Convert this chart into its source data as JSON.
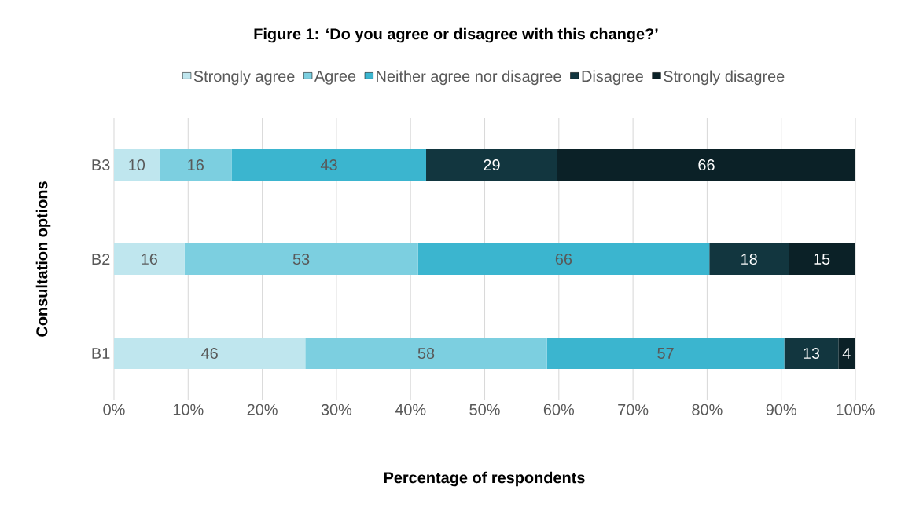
{
  "chart_data": {
    "type": "bar",
    "orientation": "horizontal",
    "stacked": true,
    "title": "Figure 1: ‘Do you agree or disagree with this change?’",
    "xlabel": "Percentage of respondents",
    "ylabel": "Consultation options",
    "categories": [
      "B3",
      "B2",
      "B1"
    ],
    "series": [
      {
        "name": "Strongly agree",
        "color": "#bfe6ee",
        "values": [
          6.1,
          9.5,
          25.8
        ]
      },
      {
        "name": "Agree",
        "color": "#7ccfe0",
        "values": [
          9.8,
          31.5,
          32.6
        ]
      },
      {
        "name": "Neither agree nor disagree",
        "color": "#3bb5cf",
        "values": [
          26.2,
          39.3,
          32.0
        ]
      },
      {
        "name": "Disagree",
        "color": "#12363f",
        "values": [
          17.7,
          10.7,
          7.3
        ]
      },
      {
        "name": "Strongly disagree",
        "color": "#0b2127",
        "values": [
          40.2,
          8.9,
          2.2
        ]
      }
    ],
    "annotations": [
      "10",
      "16",
      "43",
      "29",
      "66",
      "16",
      "53",
      "66",
      "18",
      "15",
      "46",
      "58",
      "57",
      "13",
      "4"
    ],
    "xlim": [
      0,
      100
    ],
    "xticks": [
      {
        "value": 0,
        "label": "0%"
      },
      {
        "value": 10,
        "label": "10%"
      },
      {
        "value": 20,
        "label": "20%"
      },
      {
        "value": 30,
        "label": "30%"
      },
      {
        "value": 40,
        "label": "40%"
      },
      {
        "value": 50,
        "label": "50%"
      },
      {
        "value": 60,
        "label": "60%"
      },
      {
        "value": 70,
        "label": "70%"
      },
      {
        "value": 80,
        "label": "80%"
      },
      {
        "value": 90,
        "label": "90%"
      },
      {
        "value": 100,
        "label": "100%"
      }
    ],
    "grid": "x",
    "legend": "top"
  }
}
